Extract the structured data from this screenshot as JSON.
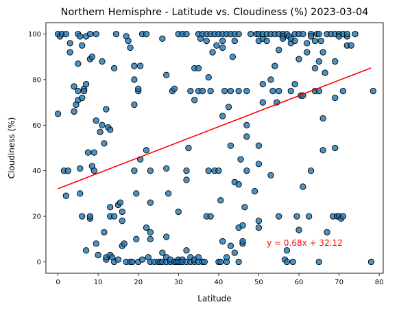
{
  "chart_data": {
    "type": "scatter",
    "title": "Northern Hemisphre - Latitude vs. Cloudiness (%) 2023-03-04",
    "xlabel": "Latitude",
    "ylabel": "Cloudiness (%)",
    "xlim": [
      -3,
      81
    ],
    "ylim": [
      -5,
      105
    ],
    "xticks": [
      0,
      10,
      20,
      30,
      40,
      50,
      60,
      70,
      80
    ],
    "yticks": [
      0,
      20,
      40,
      60,
      80,
      100
    ],
    "grid": false,
    "legend": "none",
    "colors": {
      "marker": "#1f77b4",
      "marker_edge": "#000000",
      "fit_line": "#ff0000"
    },
    "regression": {
      "slope": 0.68,
      "intercept": 32.12,
      "equation_label": "y = 0.68x + 32.12",
      "x_range": [
        0,
        78
      ]
    },
    "points": [
      [
        0,
        100
      ],
      [
        0,
        65
      ],
      [
        0.5,
        99
      ],
      [
        1,
        100
      ],
      [
        1.5,
        40
      ],
      [
        2,
        29
      ],
      [
        2,
        100
      ],
      [
        2.5,
        40
      ],
      [
        3,
        96
      ],
      [
        3,
        92
      ],
      [
        4,
        77
      ],
      [
        4,
        66
      ],
      [
        4.5,
        69
      ],
      [
        5,
        71
      ],
      [
        5,
        87
      ],
      [
        5,
        75
      ],
      [
        5,
        100
      ],
      [
        5.5,
        99
      ],
      [
        5.5,
        30
      ],
      [
        5.5,
        41
      ],
      [
        6,
        20
      ],
      [
        6,
        72
      ],
      [
        6,
        95
      ],
      [
        6.5,
        76
      ],
      [
        6.5,
        75
      ],
      [
        7,
        99
      ],
      [
        7,
        78
      ],
      [
        7,
        5
      ],
      [
        7.5,
        48
      ],
      [
        8,
        19
      ],
      [
        8,
        20
      ],
      [
        8,
        89
      ],
      [
        8,
        100
      ],
      [
        8.5,
        42
      ],
      [
        8.5,
        90
      ],
      [
        9,
        40
      ],
      [
        9,
        48
      ],
      [
        9.5,
        62
      ],
      [
        9.5,
        100
      ],
      [
        9.5,
        8
      ],
      [
        10,
        3
      ],
      [
        10.5,
        57
      ],
      [
        11,
        60
      ],
      [
        11,
        88
      ],
      [
        11.5,
        52
      ],
      [
        11.5,
        13
      ],
      [
        12,
        67
      ],
      [
        12,
        1
      ],
      [
        12,
        2
      ],
      [
        12.5,
        59
      ],
      [
        13,
        3
      ],
      [
        13,
        24
      ],
      [
        13,
        58
      ],
      [
        13,
        20
      ],
      [
        13.5,
        2
      ],
      [
        14,
        20
      ],
      [
        14,
        85
      ],
      [
        14,
        0
      ],
      [
        14.5,
        100
      ],
      [
        15,
        25
      ],
      [
        15,
        1
      ],
      [
        15.5,
        26
      ],
      [
        16,
        18
      ],
      [
        16,
        7
      ],
      [
        16,
        22
      ],
      [
        16.5,
        8
      ],
      [
        17,
        99
      ],
      [
        17,
        0
      ],
      [
        17.5,
        97
      ],
      [
        18,
        94
      ],
      [
        18,
        0
      ],
      [
        18.5,
        0
      ],
      [
        19,
        40
      ],
      [
        19,
        69
      ],
      [
        19,
        80
      ],
      [
        19,
        86
      ],
      [
        19.5,
        30
      ],
      [
        19.5,
        10
      ],
      [
        20,
        75
      ],
      [
        20,
        76
      ],
      [
        20,
        0
      ],
      [
        20.5,
        45
      ],
      [
        20.5,
        86
      ],
      [
        21,
        100
      ],
      [
        21,
        1
      ],
      [
        22,
        49
      ],
      [
        22,
        15
      ],
      [
        22,
        100
      ],
      [
        22.5,
        2
      ],
      [
        23,
        0
      ],
      [
        23,
        13
      ],
      [
        23,
        10
      ],
      [
        23,
        26
      ],
      [
        23,
        40
      ],
      [
        24,
        0
      ],
      [
        25,
        0
      ],
      [
        25.5,
        0
      ],
      [
        26,
        0
      ],
      [
        26,
        98
      ],
      [
        26,
        4
      ],
      [
        27,
        82
      ],
      [
        27,
        0
      ],
      [
        27,
        2
      ],
      [
        27,
        41
      ],
      [
        27,
        11
      ],
      [
        27.5,
        30
      ],
      [
        28,
        0
      ],
      [
        28,
        1
      ],
      [
        28.5,
        75
      ],
      [
        29,
        76
      ],
      [
        29,
        0
      ],
      [
        29.5,
        0
      ],
      [
        30,
        100
      ],
      [
        30,
        1
      ],
      [
        30,
        22
      ],
      [
        30,
        0
      ],
      [
        30.5,
        0
      ],
      [
        31,
        100
      ],
      [
        31,
        1
      ],
      [
        31,
        0
      ],
      [
        32,
        5
      ],
      [
        32,
        0
      ],
      [
        32,
        100
      ],
      [
        32,
        36
      ],
      [
        32,
        40
      ],
      [
        32.5,
        50
      ],
      [
        33,
        0
      ],
      [
        33,
        2
      ],
      [
        33,
        75
      ],
      [
        34,
        0
      ],
      [
        34,
        71
      ],
      [
        34,
        1
      ],
      [
        34,
        85
      ],
      [
        35,
        85
      ],
      [
        35,
        75
      ],
      [
        35,
        100
      ],
      [
        35,
        2
      ],
      [
        35,
        0
      ],
      [
        35.5,
        98
      ],
      [
        36,
        100
      ],
      [
        36,
        0
      ],
      [
        36,
        75
      ],
      [
        36.5,
        0
      ],
      [
        37,
        97
      ],
      [
        37,
        100
      ],
      [
        37,
        20
      ],
      [
        37.5,
        81
      ],
      [
        37.5,
        40
      ],
      [
        38,
        20
      ],
      [
        38,
        100
      ],
      [
        38,
        75
      ],
      [
        38.5,
        92
      ],
      [
        39,
        100
      ],
      [
        39,
        40
      ],
      [
        39.5,
        95
      ],
      [
        40,
        0
      ],
      [
        40,
        100
      ],
      [
        40,
        40
      ],
      [
        40.5,
        27
      ],
      [
        40.5,
        0
      ],
      [
        41,
        100
      ],
      [
        41,
        64
      ],
      [
        41,
        9
      ],
      [
        41,
        97
      ],
      [
        41,
        94
      ],
      [
        41.5,
        75
      ],
      [
        42,
        100
      ],
      [
        42,
        0
      ],
      [
        42,
        2
      ],
      [
        42.5,
        68
      ],
      [
        43,
        51
      ],
      [
        43,
        100
      ],
      [
        43,
        75
      ],
      [
        43,
        7
      ],
      [
        43.5,
        90
      ],
      [
        44,
        35
      ],
      [
        44,
        97
      ],
      [
        44,
        100
      ],
      [
        44,
        4
      ],
      [
        45,
        34
      ],
      [
        45,
        100
      ],
      [
        45,
        15
      ],
      [
        45,
        0
      ],
      [
        45,
        75
      ],
      [
        45.5,
        45
      ],
      [
        46,
        16
      ],
      [
        46,
        8
      ],
      [
        46,
        9
      ],
      [
        46.5,
        24
      ],
      [
        47,
        55
      ],
      [
        47,
        60
      ],
      [
        47,
        75
      ],
      [
        47,
        40
      ],
      [
        48,
        100
      ],
      [
        49,
        31
      ],
      [
        49.5,
        100
      ],
      [
        50,
        51
      ],
      [
        50,
        43
      ],
      [
        50,
        18
      ],
      [
        50,
        15
      ],
      [
        50,
        100
      ],
      [
        50,
        97
      ],
      [
        51,
        98
      ],
      [
        51,
        70
      ],
      [
        51,
        78
      ],
      [
        51,
        100
      ],
      [
        52,
        100
      ],
      [
        52,
        97
      ],
      [
        53,
        80
      ],
      [
        53,
        38
      ],
      [
        53,
        100
      ],
      [
        53.5,
        75
      ],
      [
        54,
        100
      ],
      [
        54,
        86
      ],
      [
        54.5,
        70
      ],
      [
        55,
        93
      ],
      [
        55,
        75
      ],
      [
        55,
        20
      ],
      [
        55,
        100
      ],
      [
        56,
        100
      ],
      [
        56,
        99
      ],
      [
        56,
        98
      ],
      [
        56.5,
        1
      ],
      [
        57,
        100
      ],
      [
        57,
        5
      ],
      [
        57,
        0
      ],
      [
        57.5,
        99
      ],
      [
        58,
        96
      ],
      [
        58,
        75
      ],
      [
        58,
        98
      ],
      [
        58.5,
        0
      ],
      [
        59,
        78
      ],
      [
        59,
        100
      ],
      [
        59,
        97
      ],
      [
        59.5,
        20
      ],
      [
        60,
        89
      ],
      [
        60,
        14
      ],
      [
        60,
        100
      ],
      [
        60.5,
        73
      ],
      [
        61,
        33
      ],
      [
        61,
        100
      ],
      [
        61,
        73
      ],
      [
        62,
        92
      ],
      [
        62,
        96
      ],
      [
        62.5,
        20
      ],
      [
        63,
        40
      ],
      [
        63,
        100
      ],
      [
        63,
        99
      ],
      [
        64,
        85
      ],
      [
        64,
        97
      ],
      [
        64,
        75
      ],
      [
        64.5,
        100
      ],
      [
        65,
        75
      ],
      [
        65,
        88
      ],
      [
        65,
        0
      ],
      [
        65,
        100
      ],
      [
        65.5,
        97
      ],
      [
        66,
        92
      ],
      [
        66,
        49
      ],
      [
        66,
        63
      ],
      [
        66.5,
        83
      ],
      [
        67,
        100
      ],
      [
        67,
        13
      ],
      [
        68,
        100
      ],
      [
        68.5,
        20
      ],
      [
        69,
        50
      ],
      [
        69,
        72
      ],
      [
        69,
        88
      ],
      [
        69,
        100
      ],
      [
        69.5,
        20
      ],
      [
        70,
        100
      ],
      [
        70,
        99
      ],
      [
        70,
        20
      ],
      [
        70.5,
        19
      ],
      [
        71,
        100
      ],
      [
        71,
        75
      ],
      [
        71,
        20
      ],
      [
        72,
        95
      ],
      [
        72,
        99
      ],
      [
        72,
        100
      ],
      [
        73,
        95
      ],
      [
        74,
        100
      ],
      [
        78,
        0
      ],
      [
        78.5,
        75
      ]
    ]
  }
}
